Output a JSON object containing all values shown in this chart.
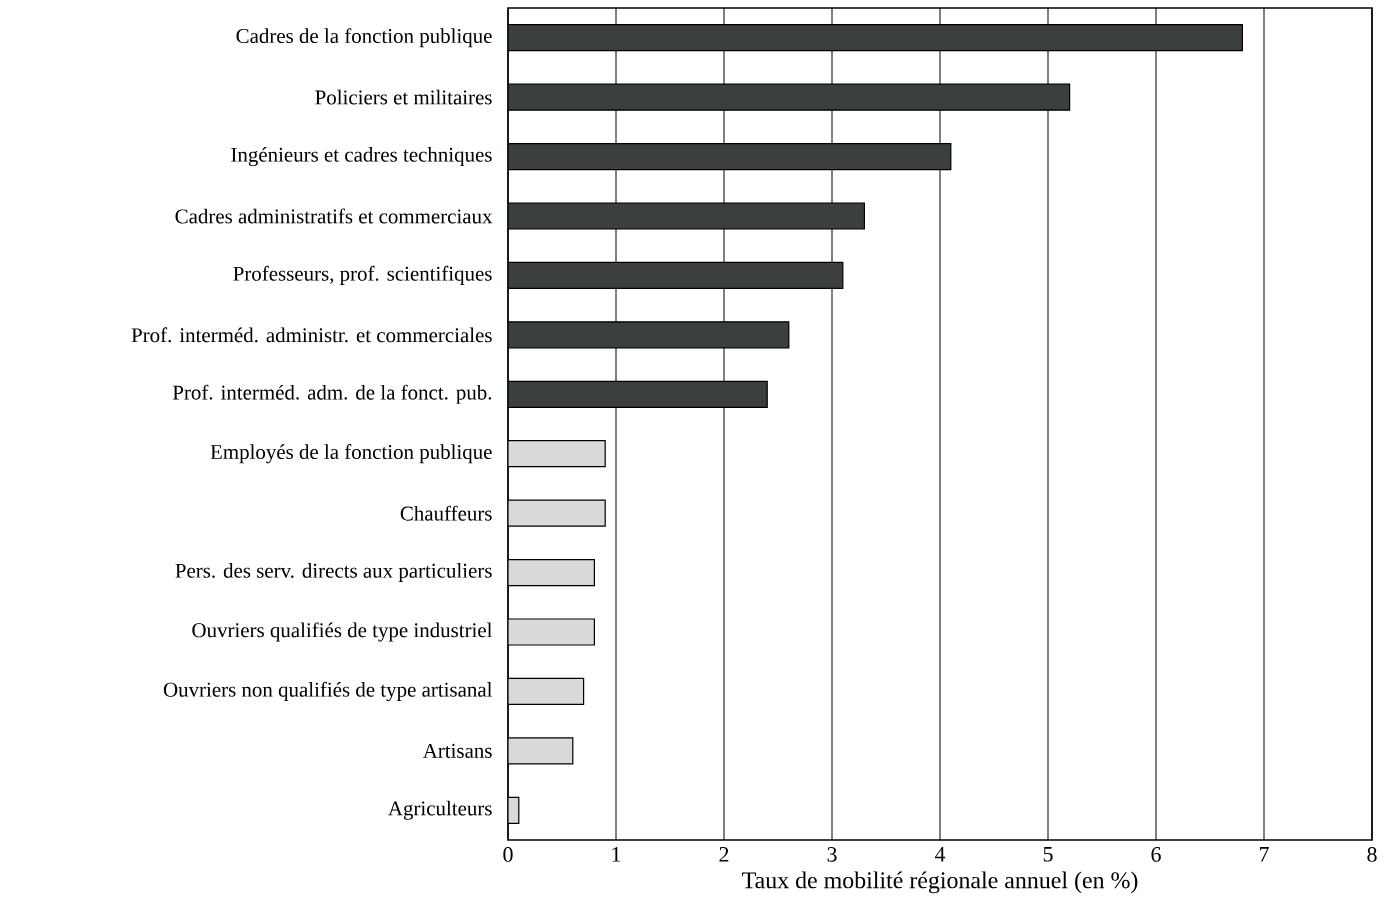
{
  "chart_data": {
    "type": "bar",
    "orientation": "horizontal",
    "xlabel": "Taux de mobilité régionale annuel (en %)",
    "categories": [
      "Cadres de la fonction publique",
      "Policiers et militaires",
      "Ingénieurs et cadres techniques",
      "Cadres administratifs et commerciaux",
      "Professeurs, prof. scientifiques",
      "Prof. interméd. administr. et commerciales",
      "Prof. interméd. adm. de la fonct. pub.",
      "Employés de la fonction publique",
      "Chauffeurs",
      "Pers. des serv. directs aux particuliers",
      "Ouvriers qualifiés de type industriel",
      "Ouvriers non qualifiés de type artisanal",
      "Artisans",
      "Agriculteurs"
    ],
    "values": [
      6.8,
      5.2,
      4.1,
      3.3,
      3.1,
      2.6,
      2.4,
      0.9,
      0.9,
      0.8,
      0.8,
      0.7,
      0.6,
      0.1
    ],
    "colors": [
      "#3b3f3d",
      "#3b3f3d",
      "#3b3f3d",
      "#3b3f3d",
      "#3b3f3d",
      "#3b3f3d",
      "#3b3f3d",
      "#d9d9d9",
      "#d9d9d9",
      "#d9d9d9",
      "#d9d9d9",
      "#d9d9d9",
      "#d9d9d9",
      "#d9d9d9"
    ],
    "xlim": [
      0,
      8
    ],
    "xticks": [
      0,
      1,
      2,
      3,
      4,
      5,
      6,
      7,
      8
    ],
    "grid": "x"
  }
}
